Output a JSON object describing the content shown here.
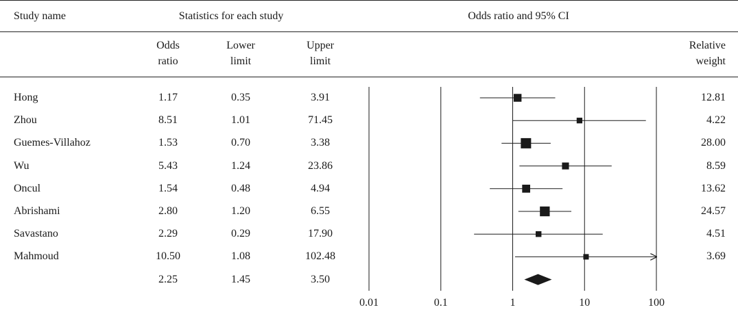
{
  "header": {
    "study_name": "Study name",
    "statistics": "Statistics for each study",
    "plot_title": "Odds ratio and 95% CI",
    "odds_ratio": [
      "Odds",
      "ratio"
    ],
    "lower_limit": [
      "Lower",
      "limit"
    ],
    "upper_limit": [
      "Upper",
      "limit"
    ],
    "relative_weight": [
      "Relative",
      "weight"
    ]
  },
  "rows": [
    {
      "name": "Hong",
      "or": "1.17",
      "lower": "0.35",
      "upper": "3.91",
      "weight": "12.81"
    },
    {
      "name": "Zhou",
      "or": "8.51",
      "lower": "1.01",
      "upper": "71.45",
      "weight": "4.22"
    },
    {
      "name": "Guemes-Villahoz",
      "or": "1.53",
      "lower": "0.70",
      "upper": "3.38",
      "weight": "28.00"
    },
    {
      "name": "Wu",
      "or": "5.43",
      "lower": "1.24",
      "upper": "23.86",
      "weight": "8.59"
    },
    {
      "name": "Oncul",
      "or": "1.54",
      "lower": "0.48",
      "upper": "4.94",
      "weight": "13.62"
    },
    {
      "name": "Abrishami",
      "or": "2.80",
      "lower": "1.20",
      "upper": "6.55",
      "weight": "24.57"
    },
    {
      "name": "Savastano",
      "or": "2.29",
      "lower": "0.29",
      "upper": "17.90",
      "weight": "4.51"
    },
    {
      "name": "Mahmoud",
      "or": "10.50",
      "lower": "1.08",
      "upper": "102.48",
      "weight": "3.69"
    }
  ],
  "summary": {
    "or": "2.25",
    "lower": "1.45",
    "upper": "3.50"
  },
  "chart_data": {
    "type": "forest",
    "x_scale": "log",
    "xlim": [
      0.01,
      100
    ],
    "x_ticks": [
      "0.01",
      "0.1",
      "1",
      "10",
      "100"
    ],
    "studies": [
      {
        "name": "Hong",
        "or": 1.17,
        "lower": 0.35,
        "upper": 3.91,
        "weight": 12.81
      },
      {
        "name": "Zhou",
        "or": 8.51,
        "lower": 1.01,
        "upper": 71.45,
        "weight": 4.22
      },
      {
        "name": "Guemes-Villahoz",
        "or": 1.53,
        "lower": 0.7,
        "upper": 3.38,
        "weight": 28.0
      },
      {
        "name": "Wu",
        "or": 5.43,
        "lower": 1.24,
        "upper": 23.86,
        "weight": 8.59
      },
      {
        "name": "Oncul",
        "or": 1.54,
        "lower": 0.48,
        "upper": 4.94,
        "weight": 13.62
      },
      {
        "name": "Abrishami",
        "or": 2.8,
        "lower": 1.2,
        "upper": 6.55,
        "weight": 24.57
      },
      {
        "name": "Savastano",
        "or": 2.29,
        "lower": 0.29,
        "upper": 17.9,
        "weight": 4.51
      },
      {
        "name": "Mahmoud",
        "or": 10.5,
        "lower": 1.08,
        "upper": 102.48,
        "weight": 3.69
      }
    ],
    "pooled": {
      "or": 2.25,
      "lower": 1.45,
      "upper": 3.5
    },
    "colors": {
      "ink": "#1a1a1a"
    }
  }
}
